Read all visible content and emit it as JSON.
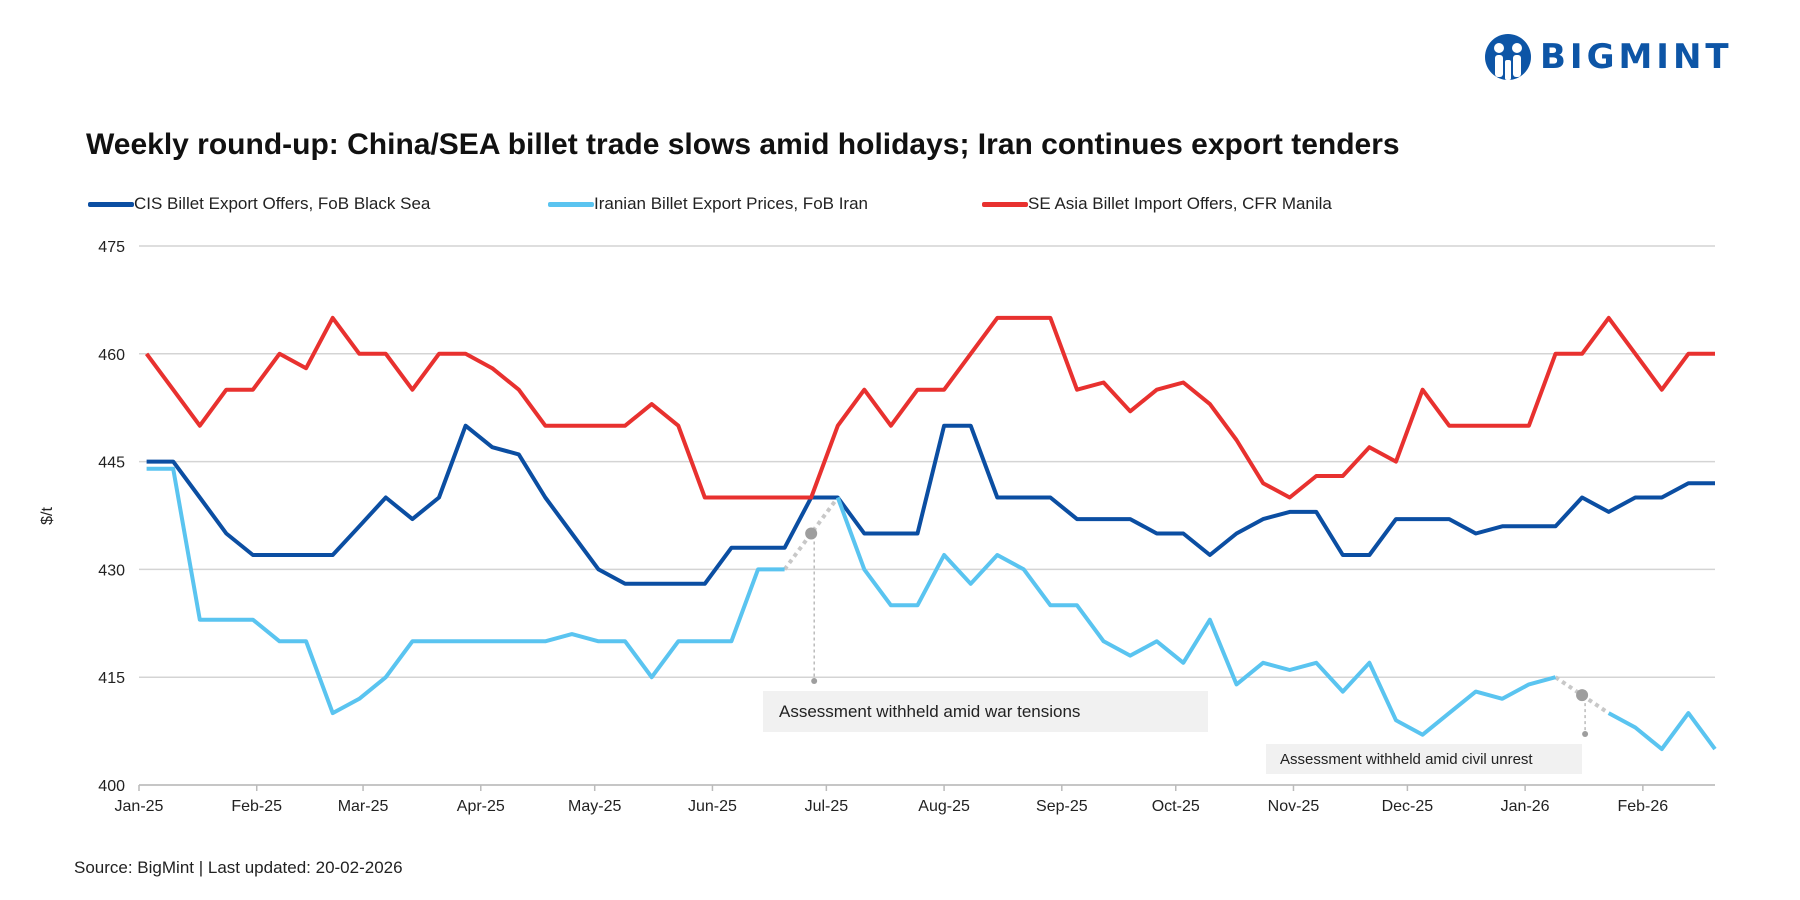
{
  "brand": {
    "name": "BIGMINT"
  },
  "source": "Source: BigMint | Last updated: 20-02-2026",
  "colors": {
    "cis": "#0b4ea2",
    "iran": "#5ac4f0",
    "sea": "#e8312f",
    "gap": "#c8c8c8",
    "grid": "#d4d4d4"
  },
  "chart_data": {
    "type": "line",
    "title": "Weekly round-up: China/SEA billet trade slows amid holidays; Iran continues export tenders",
    "ylabel": "$/t",
    "xlabel": "",
    "ylim": [
      400,
      475
    ],
    "yticks": [
      400,
      415,
      430,
      445,
      460,
      475
    ],
    "xlim": [
      "2025-01-01",
      "2026-02-20"
    ],
    "xticks": [
      {
        "date": "2025-01-01",
        "label": "Jan-25"
      },
      {
        "date": "2025-02-01",
        "label": "Feb-25"
      },
      {
        "date": "2025-03-01",
        "label": "Mar-25"
      },
      {
        "date": "2025-04-01",
        "label": "Apr-25"
      },
      {
        "date": "2025-05-01",
        "label": "May-25"
      },
      {
        "date": "2025-06-01",
        "label": "Jun-25"
      },
      {
        "date": "2025-07-01",
        "label": "Jul-25"
      },
      {
        "date": "2025-08-01",
        "label": "Aug-25"
      },
      {
        "date": "2025-09-01",
        "label": "Sep-25"
      },
      {
        "date": "2025-10-01",
        "label": "Oct-25"
      },
      {
        "date": "2025-11-01",
        "label": "Nov-25"
      },
      {
        "date": "2025-12-01",
        "label": "Dec-25"
      },
      {
        "date": "2026-01-01",
        "label": "Jan-26"
      },
      {
        "date": "2026-02-01",
        "label": "Feb-26"
      }
    ],
    "grid": true,
    "legend": "top",
    "x": [
      "2025-01-03",
      "2025-01-10",
      "2025-01-17",
      "2025-01-24",
      "2025-01-31",
      "2025-02-07",
      "2025-02-14",
      "2025-02-21",
      "2025-02-28",
      "2025-03-07",
      "2025-03-14",
      "2025-03-21",
      "2025-03-28",
      "2025-04-04",
      "2025-04-11",
      "2025-04-18",
      "2025-04-25",
      "2025-05-02",
      "2025-05-09",
      "2025-05-16",
      "2025-05-23",
      "2025-05-30",
      "2025-06-06",
      "2025-06-13",
      "2025-06-20",
      "2025-06-27",
      "2025-07-04",
      "2025-07-11",
      "2025-07-18",
      "2025-07-25",
      "2025-08-01",
      "2025-08-08",
      "2025-08-15",
      "2025-08-22",
      "2025-08-29",
      "2025-09-05",
      "2025-09-12",
      "2025-09-19",
      "2025-09-26",
      "2025-10-03",
      "2025-10-10",
      "2025-10-17",
      "2025-10-24",
      "2025-10-31",
      "2025-11-07",
      "2025-11-14",
      "2025-11-21",
      "2025-11-28",
      "2025-12-05",
      "2025-12-12",
      "2025-12-19",
      "2025-12-26",
      "2026-01-02",
      "2026-01-09",
      "2026-01-16",
      "2026-01-23",
      "2026-01-30",
      "2026-02-06",
      "2026-02-13",
      "2026-02-20"
    ],
    "series": [
      {
        "name": "CIS Billet Export Offers, FoB Black Sea",
        "key": "cis",
        "values": [
          445,
          445,
          440,
          435,
          432,
          432,
          432,
          432,
          436,
          440,
          437,
          440,
          450,
          447,
          446,
          440,
          435,
          430,
          428,
          428,
          428,
          428,
          433,
          433,
          433,
          440,
          440,
          435,
          435,
          435,
          450,
          450,
          440,
          440,
          440,
          437,
          437,
          437,
          435,
          435,
          432,
          435,
          437,
          438,
          438,
          432,
          432,
          437,
          437,
          437,
          435,
          436,
          436,
          436,
          440,
          438,
          440,
          440,
          442,
          442
        ]
      },
      {
        "name": "Iranian Billet Export Prices, FoB Iran",
        "key": "iran",
        "values": [
          444,
          444,
          423,
          423,
          423,
          420,
          420,
          410,
          412,
          415,
          420,
          420,
          420,
          420,
          420,
          420,
          421,
          420,
          420,
          415,
          420,
          420,
          420,
          430,
          430,
          null,
          440,
          430,
          425,
          425,
          432,
          428,
          432,
          430,
          425,
          425,
          420,
          418,
          420,
          417,
          423,
          414,
          417,
          416,
          417,
          413,
          417,
          409,
          407,
          410,
          413,
          412,
          414,
          415,
          null,
          410,
          408,
          405,
          410,
          405
        ]
      },
      {
        "name": "SE Asia Billet Import Offers, CFR Manila",
        "key": "sea",
        "values": [
          460,
          455,
          450,
          455,
          455,
          460,
          458,
          465,
          460,
          460,
          455,
          460,
          460,
          458,
          455,
          450,
          450,
          450,
          450,
          453,
          450,
          440,
          440,
          440,
          440,
          440,
          450,
          455,
          450,
          455,
          455,
          460,
          465,
          465,
          465,
          455,
          456,
          452,
          455,
          456,
          453,
          448,
          442,
          440,
          443,
          443,
          447,
          445,
          455,
          450,
          450,
          450,
          450,
          460,
          460,
          465,
          460,
          455,
          460,
          460
        ]
      }
    ],
    "annotations": [
      {
        "text": "Assessment withheld amid  war tensions",
        "date": "2025-06-27",
        "series": "iran"
      },
      {
        "text": "Assessment withheld amid civil unrest",
        "date": "2026-01-16",
        "series": "iran"
      }
    ]
  }
}
